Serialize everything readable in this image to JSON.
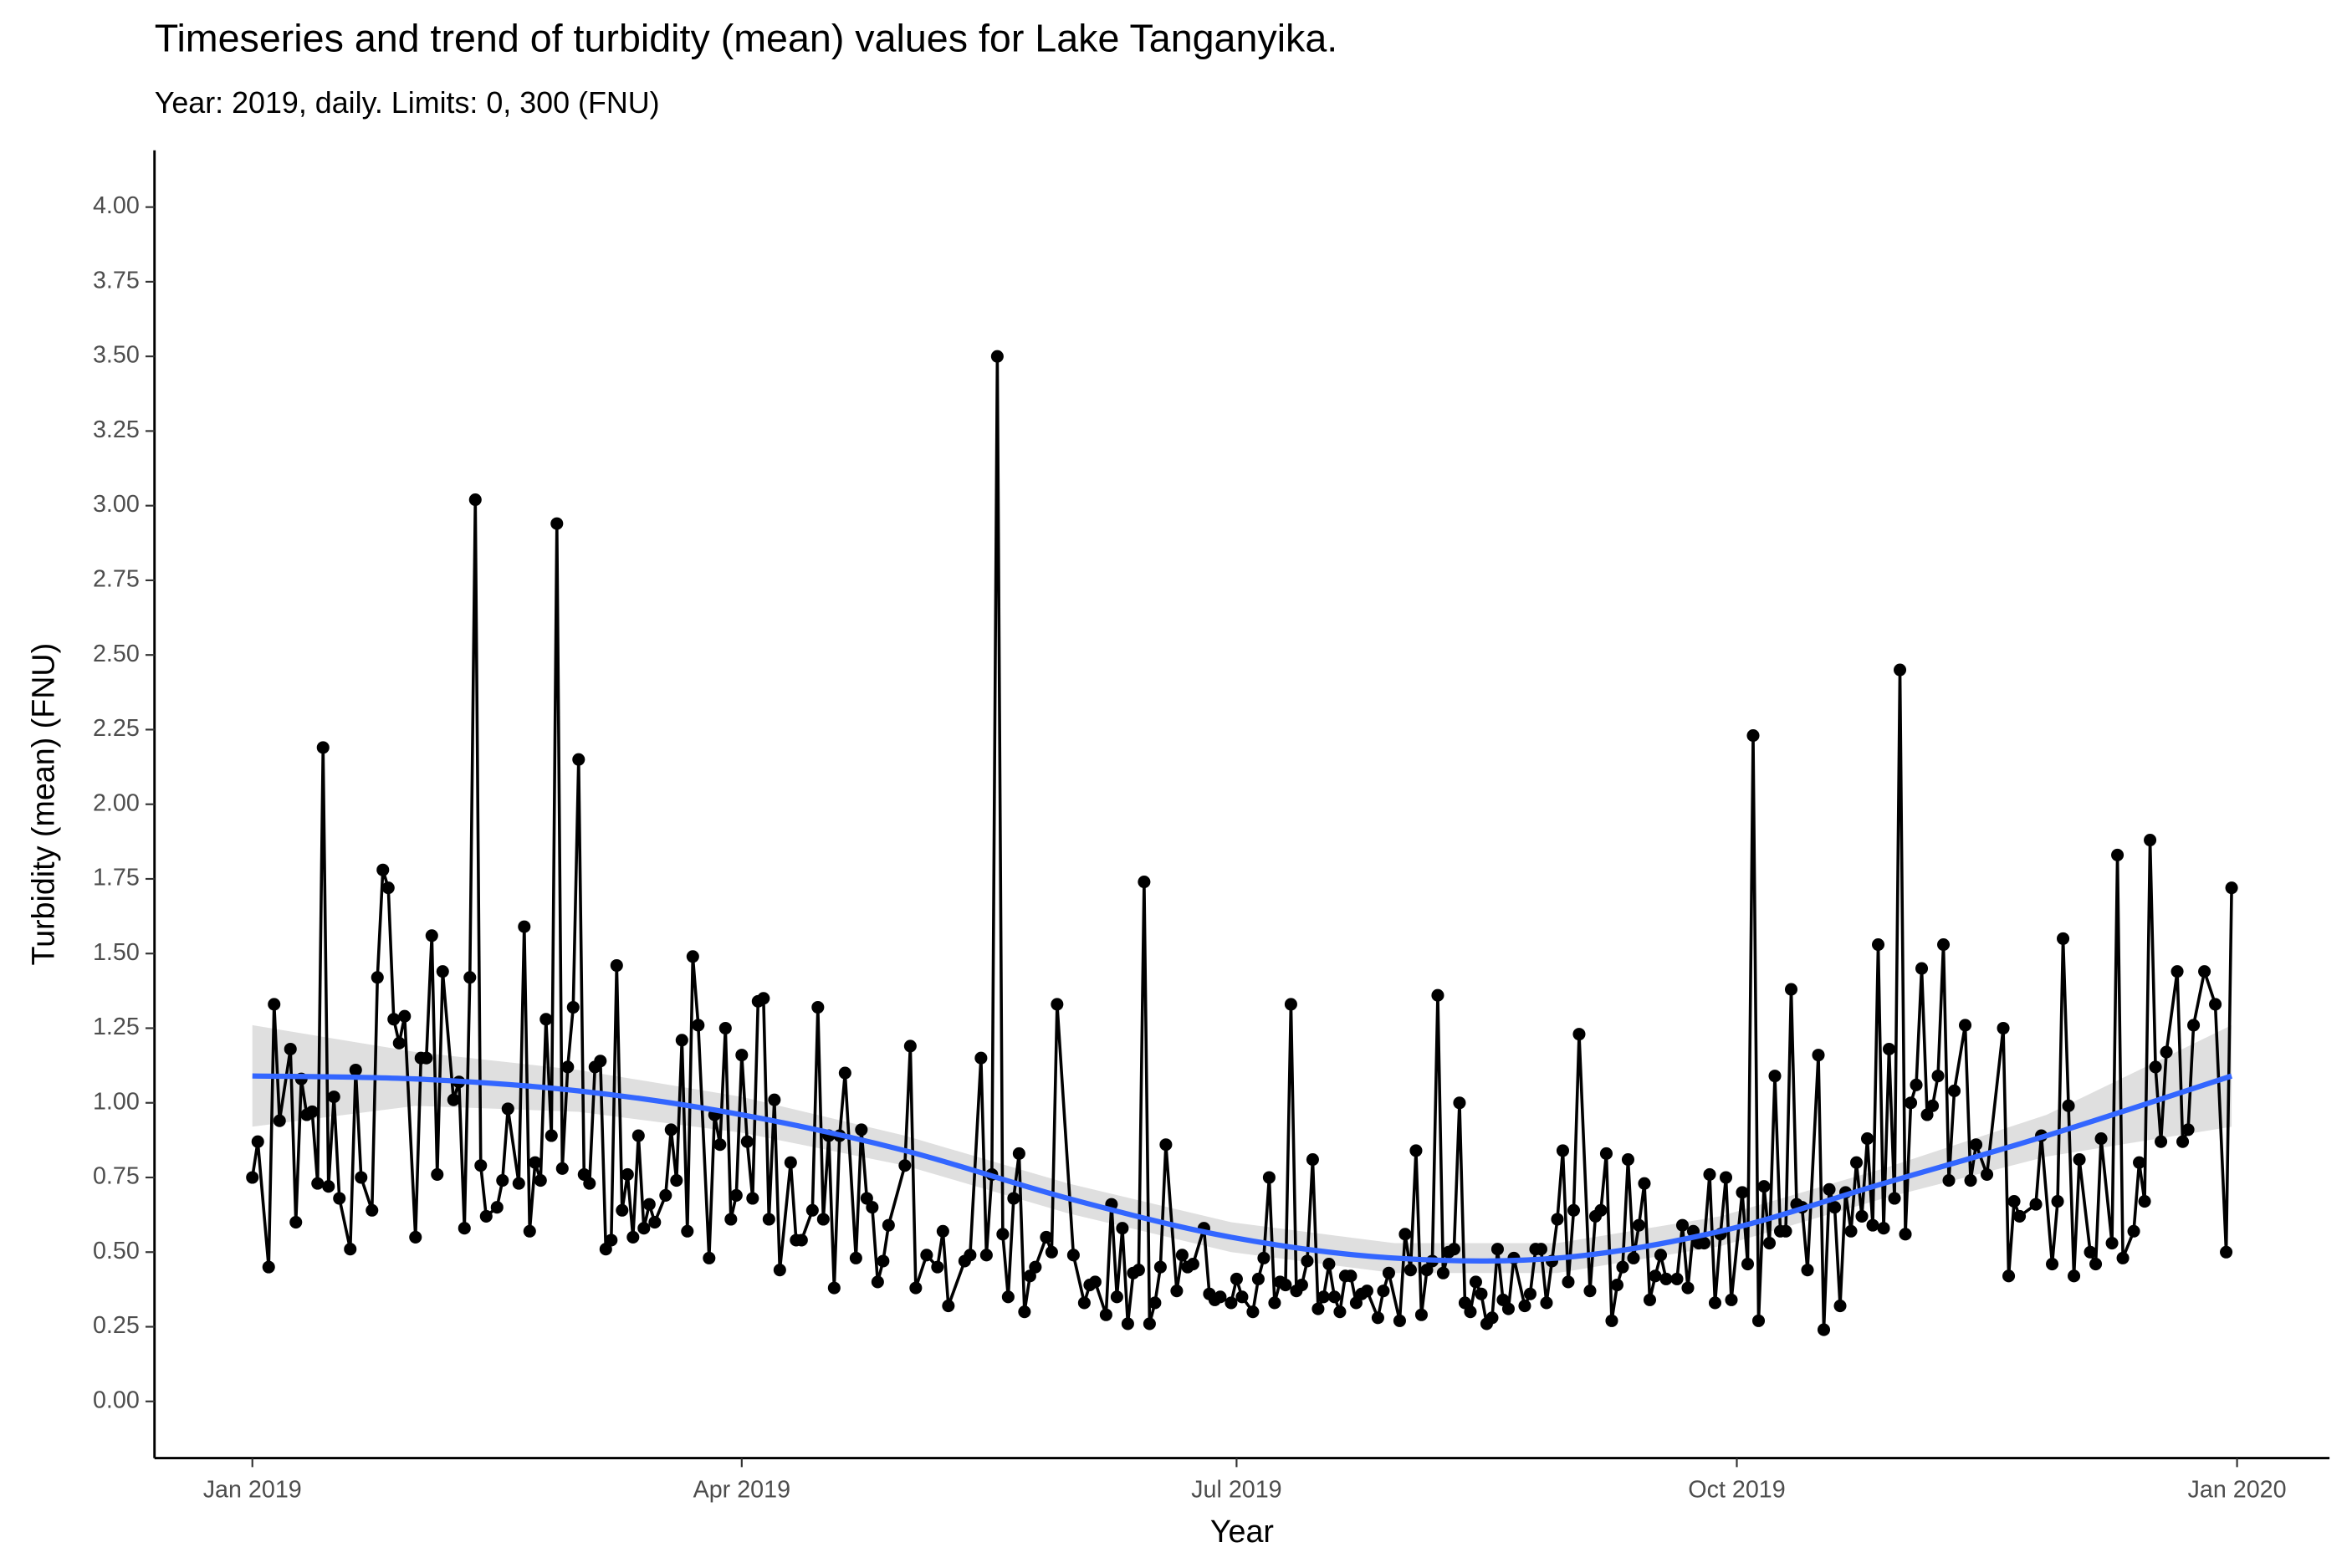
{
  "chart_data": {
    "type": "line",
    "title": "Timeseries and trend of turbidity (mean) values for Lake Tanganyika.",
    "subtitle": "Year: 2019, daily. Limits: 0, 300 (FNU)",
    "x_label": "Year",
    "y_label": "Turbidity (mean) (FNU)",
    "color": "#000000",
    "xlim": [
      -18,
      382
    ],
    "ylim": [
      -0.19,
      4.19
    ],
    "xticks": [
      {
        "value": 0,
        "label": "Jan 2019"
      },
      {
        "value": 90,
        "label": "Apr 2019"
      },
      {
        "value": 181,
        "label": "Jul 2019"
      },
      {
        "value": 273,
        "label": "Oct 2019"
      },
      {
        "value": 365,
        "label": "Jan 2020"
      }
    ],
    "yticks": [
      {
        "value": 0,
        "label": "0.00"
      },
      {
        "value": 0.25,
        "label": "0.25"
      },
      {
        "value": 0.5,
        "label": "0.50"
      },
      {
        "value": 0.75,
        "label": "0.75"
      },
      {
        "value": 1,
        "label": "1.00"
      },
      {
        "value": 1.25,
        "label": "1.25"
      },
      {
        "value": 1.5,
        "label": "1.50"
      },
      {
        "value": 1.75,
        "label": "1.75"
      },
      {
        "value": 2,
        "label": "2.00"
      },
      {
        "value": 2.25,
        "label": "2.25"
      },
      {
        "value": 2.5,
        "label": "2.50"
      },
      {
        "value": 2.75,
        "label": "2.75"
      },
      {
        "value": 3,
        "label": "3.00"
      },
      {
        "value": 3.25,
        "label": "3.25"
      },
      {
        "value": 3.5,
        "label": "3.50"
      },
      {
        "value": 3.75,
        "label": "3.75"
      },
      {
        "value": 4,
        "label": "4.00"
      }
    ],
    "x": [
      0,
      1,
      3,
      4,
      5,
      7,
      8,
      9,
      10,
      11,
      12,
      13,
      14,
      15,
      16,
      18,
      19,
      20,
      22,
      23,
      24,
      25,
      26,
      27,
      28,
      30,
      31,
      32,
      33,
      34,
      35,
      37,
      38,
      39,
      40,
      41,
      42,
      43,
      45,
      46,
      47,
      49,
      50,
      51,
      52,
      53,
      54,
      55,
      56,
      57,
      58,
      59,
      60,
      61,
      62,
      63,
      64,
      65,
      66,
      67,
      68,
      69,
      70,
      71,
      72,
      73,
      74,
      76,
      77,
      78,
      79,
      80,
      81,
      82,
      84,
      85,
      86,
      87,
      88,
      89,
      90,
      91,
      92,
      93,
      94,
      95,
      96,
      97,
      99,
      100,
      101,
      103,
      104,
      105,
      106,
      107,
      108,
      109,
      111,
      112,
      113,
      114,
      115,
      116,
      117,
      120,
      121,
      122,
      124,
      126,
      127,
      128,
      131,
      132,
      134,
      135,
      136,
      137,
      138,
      139,
      140,
      141,
      142,
      143,
      144,
      146,
      147,
      148,
      151,
      153,
      154,
      155,
      157,
      158,
      159,
      160,
      161,
      162,
      163,
      164,
      165,
      166,
      167,
      168,
      170,
      171,
      172,
      173,
      175,
      176,
      177,
      178,
      180,
      181,
      182,
      184,
      185,
      186,
      187,
      188,
      189,
      190,
      191,
      192,
      193,
      194,
      195,
      196,
      197,
      198,
      199,
      200,
      201,
      202,
      203,
      204,
      205,
      207,
      208,
      209,
      211,
      212,
      213,
      214,
      215,
      216,
      217,
      218,
      219,
      220,
      221,
      222,
      223,
      224,
      225,
      226,
      227,
      228,
      229,
      230,
      231,
      232,
      234,
      235,
      236,
      237,
      238,
      239,
      240,
      241,
      242,
      243,
      244,
      246,
      247,
      248,
      249,
      250,
      251,
      252,
      253,
      254,
      255,
      256,
      257,
      258,
      259,
      260,
      262,
      263,
      264,
      265,
      266,
      267,
      268,
      269,
      270,
      271,
      272,
      274,
      275,
      276,
      277,
      278,
      279,
      280,
      281,
      282,
      283,
      284,
      285,
      286,
      288,
      289,
      290,
      291,
      292,
      293,
      294,
      295,
      296,
      297,
      298,
      299,
      300,
      301,
      302,
      303,
      304,
      305,
      306,
      307,
      308,
      309,
      310,
      311,
      312,
      313,
      315,
      316,
      317,
      319,
      322,
      323,
      324,
      325,
      328,
      329,
      331,
      332,
      333,
      334,
      335,
      336,
      338,
      339,
      340,
      342,
      343,
      344,
      346,
      347,
      348,
      349,
      350,
      351,
      352,
      354,
      355,
      356,
      357,
      359,
      361,
      363,
      364
    ],
    "values": [
      0.75,
      0.87,
      0.45,
      1.33,
      0.94,
      1.18,
      0.6,
      1.08,
      0.96,
      0.97,
      0.73,
      2.19,
      0.72,
      1.02,
      0.68,
      0.51,
      1.11,
      0.75,
      0.64,
      1.42,
      1.78,
      1.72,
      1.28,
      1.2,
      1.29,
      0.55,
      1.15,
      1.15,
      1.56,
      0.76,
      1.44,
      1.01,
      1.07,
      0.58,
      1.42,
      3.02,
      0.79,
      0.62,
      0.65,
      0.74,
      0.98,
      0.73,
      1.59,
      0.57,
      0.8,
      0.74,
      1.28,
      0.89,
      2.94,
      0.78,
      1.12,
      1.32,
      2.15,
      0.76,
      0.73,
      1.12,
      1.14,
      0.51,
      0.54,
      1.46,
      0.64,
      0.76,
      0.55,
      0.89,
      0.58,
      0.66,
      0.6,
      0.69,
      0.91,
      0.74,
      1.21,
      0.57,
      1.49,
      1.26,
      0.48,
      0.96,
      0.86,
      1.25,
      0.61,
      0.69,
      1.16,
      0.87,
      0.68,
      1.34,
      1.35,
      0.61,
      1.01,
      0.44,
      0.8,
      0.54,
      0.54,
      0.64,
      1.32,
      0.61,
      0.89,
      0.38,
      0.89,
      1.1,
      0.48,
      0.91,
      0.68,
      0.65,
      0.4,
      0.47,
      0.59,
      0.79,
      1.19,
      0.38,
      0.49,
      0.45,
      0.57,
      0.32,
      0.47,
      0.49,
      1.15,
      0.49,
      0.76,
      3.5,
      0.56,
      0.35,
      0.68,
      0.83,
      0.3,
      0.42,
      0.45,
      0.55,
      0.5,
      1.33,
      0.49,
      0.33,
      0.39,
      0.4,
      0.29,
      0.66,
      0.35,
      0.58,
      0.26,
      0.43,
      0.44,
      1.74,
      0.26,
      0.33,
      0.45,
      0.86,
      0.37,
      0.49,
      0.45,
      0.46,
      0.58,
      0.36,
      0.34,
      0.35,
      0.33,
      0.41,
      0.35,
      0.3,
      0.41,
      0.48,
      0.75,
      0.33,
      0.4,
      0.39,
      1.33,
      0.37,
      0.39,
      0.47,
      0.81,
      0.31,
      0.35,
      0.46,
      0.35,
      0.3,
      0.42,
      0.42,
      0.33,
      0.36,
      0.37,
      0.28,
      0.37,
      0.43,
      0.27,
      0.56,
      0.44,
      0.84,
      0.29,
      0.44,
      0.47,
      1.36,
      0.43,
      0.5,
      0.51,
      1.0,
      0.33,
      0.3,
      0.4,
      0.36,
      0.26,
      0.28,
      0.51,
      0.34,
      0.31,
      0.48,
      0.32,
      0.36,
      0.51,
      0.51,
      0.33,
      0.47,
      0.61,
      0.84,
      0.4,
      0.64,
      1.23,
      0.37,
      0.62,
      0.64,
      0.83,
      0.27,
      0.39,
      0.45,
      0.81,
      0.48,
      0.59,
      0.73,
      0.34,
      0.42,
      0.49,
      0.41,
      0.41,
      0.59,
      0.38,
      0.57,
      0.53,
      0.53,
      0.76,
      0.33,
      0.56,
      0.75,
      0.34,
      0.7,
      0.46,
      2.23,
      0.27,
      0.72,
      0.53,
      1.09,
      0.57,
      0.57,
      1.38,
      0.66,
      0.65,
      0.44,
      1.16,
      0.24,
      0.71,
      0.65,
      0.32,
      0.7,
      0.57,
      0.8,
      0.62,
      0.88,
      0.59,
      1.53,
      0.58,
      1.18,
      0.68,
      2.45,
      0.56,
      1.0,
      1.06,
      1.45,
      0.96,
      0.99,
      1.09,
      1.53,
      0.74,
      1.04,
      1.26,
      0.74,
      0.86,
      0.76,
      1.25,
      0.42,
      0.67,
      0.62,
      0.66,
      0.89,
      0.46,
      0.67,
      1.55,
      0.99,
      0.42,
      0.81,
      0.5,
      0.46,
      0.88,
      0.53,
      1.83,
      0.48,
      0.57,
      0.8,
      0.67,
      1.88,
      1.12,
      0.87,
      1.17,
      1.44,
      0.87,
      0.91,
      1.26,
      1.44,
      1.33,
      0.5,
      1.72
    ],
    "trend": {
      "color": "#3366ff",
      "band_color": "#d9d9d9",
      "x": [
        0,
        30,
        60,
        90,
        120,
        150,
        180,
        210,
        240,
        270,
        300,
        330,
        364
      ],
      "values": [
        1.09,
        1.08,
        1.04,
        0.96,
        0.84,
        0.68,
        0.55,
        0.48,
        0.48,
        0.57,
        0.73,
        0.89,
        1.09
      ],
      "lower": [
        0.92,
        0.99,
        0.97,
        0.9,
        0.79,
        0.63,
        0.5,
        0.43,
        0.43,
        0.52,
        0.68,
        0.82,
        0.92
      ],
      "upper": [
        1.26,
        1.17,
        1.11,
        1.02,
        0.89,
        0.73,
        0.6,
        0.53,
        0.53,
        0.62,
        0.78,
        0.96,
        1.26
      ]
    }
  }
}
